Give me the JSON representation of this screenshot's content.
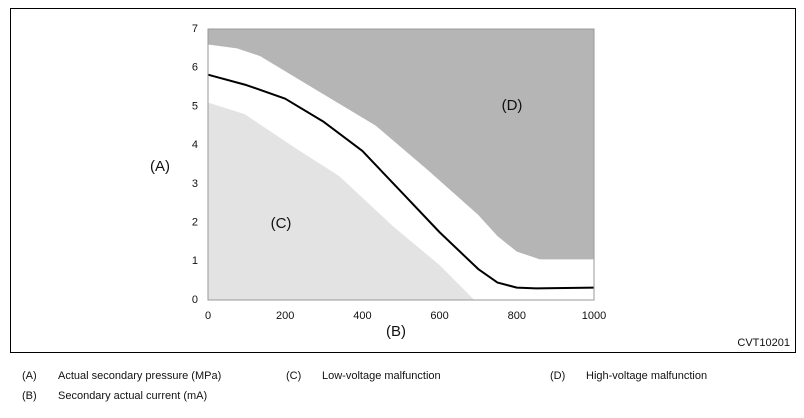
{
  "chart_data": {
    "type": "area",
    "y_label": "(A)",
    "x_label": "(B)",
    "code": "CVT10201",
    "xlim": [
      0,
      1000
    ],
    "xticks": [
      0,
      200,
      400,
      600,
      800,
      1000
    ],
    "ylim": [
      0,
      7
    ],
    "yticks": [
      0,
      1,
      2,
      3,
      4,
      5,
      6,
      7
    ],
    "series": [
      {
        "name": "(C)",
        "color": "#e3e3e3",
        "fill": "below",
        "x": [
          0,
          95,
          230,
          340,
          480,
          600,
          690
        ],
        "values": [
          5.1,
          4.8,
          3.9,
          3.2,
          1.9,
          0.9,
          0
        ]
      },
      {
        "name": "(D)",
        "color": "#b5b5b5",
        "fill": "above",
        "x": [
          0,
          75,
          135,
          285,
          435,
          570,
          700,
          750,
          800,
          860,
          1000
        ],
        "values": [
          6.6,
          6.5,
          6.3,
          5.4,
          4.5,
          3.35,
          2.2,
          1.65,
          1.25,
          1.05,
          1.05
        ]
      },
      {
        "color": "#000000",
        "fill": "none",
        "x": [
          0,
          100,
          200,
          300,
          400,
          500,
          600,
          700,
          750,
          800,
          850,
          1000
        ],
        "values": [
          5.82,
          5.55,
          5.2,
          4.6,
          3.85,
          2.8,
          1.75,
          0.8,
          0.45,
          0.32,
          0.3,
          0.32
        ]
      }
    ]
  },
  "legend": [
    {
      "key": "(A)",
      "text": "Actual secondary pressure (MPa)"
    },
    {
      "key": "(C)",
      "text": "Low-voltage malfunction"
    },
    {
      "key": "(D)",
      "text": "High-voltage malfunction"
    },
    {
      "key": "(B)",
      "text": "Secondary actual current (mA)"
    }
  ]
}
